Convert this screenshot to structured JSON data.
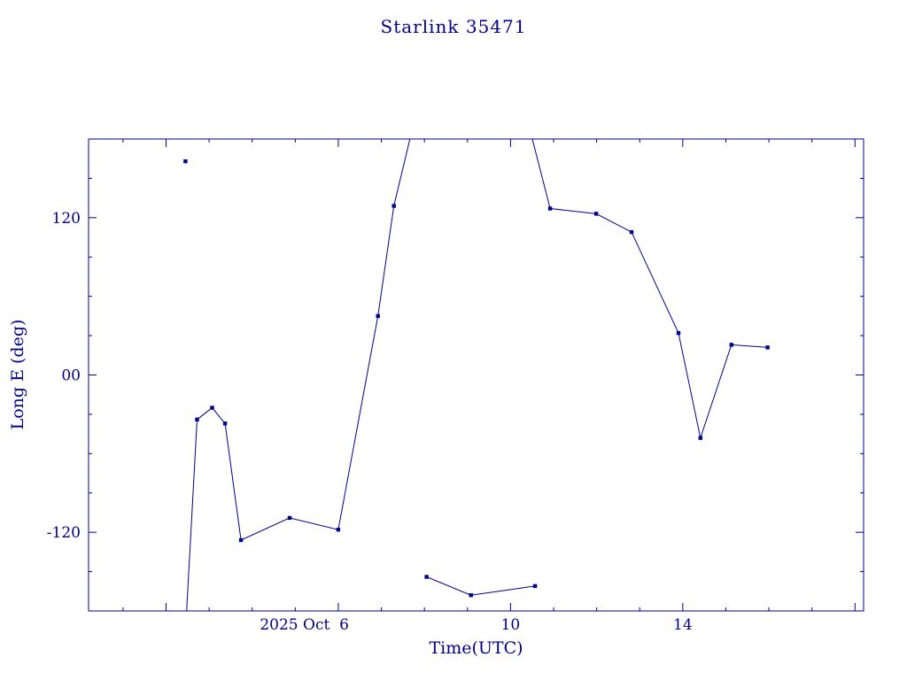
{
  "chart_data": {
    "type": "line",
    "title": "Starlink 35471",
    "xlabel": "Time(UTC)",
    "ylabel": "Long E (deg)",
    "color": "#00008B",
    "background": "#ffffff",
    "grid": false,
    "legend": "none",
    "xlim": [
      0.2,
      18.2
    ],
    "ylim": [
      -180,
      180
    ],
    "x_axis_note": "day of October 2025, UTC",
    "x_ticks": {
      "minor": [
        1,
        3,
        4,
        5,
        7,
        8,
        9,
        11,
        12,
        13,
        15,
        16,
        17
      ],
      "major": [
        2,
        6,
        10,
        14,
        18
      ],
      "labels": [
        {
          "value": 6,
          "label": "2025 Oct  6",
          "align": "end"
        },
        {
          "value": 10,
          "label": "10",
          "align": "middle"
        },
        {
          "value": 14,
          "label": "14",
          "align": "middle"
        }
      ]
    },
    "y_ticks": {
      "minor": [
        -150,
        -90,
        -60,
        -30,
        30,
        60,
        90,
        150
      ],
      "major": [
        -120,
        0,
        120
      ],
      "labels": [
        {
          "value": 120,
          "label": "120"
        },
        {
          "value": 0,
          "label": "00"
        },
        {
          "value": -120,
          "label": "-120"
        }
      ]
    },
    "marker": "filled-square",
    "segments": [
      {
        "name": "isolated-point",
        "points": [
          [
            2.45,
            163
          ]
        ]
      },
      {
        "name": "track-1",
        "points": [
          [
            2.47,
            -185
          ],
          [
            2.72,
            -34
          ],
          [
            3.07,
            -25
          ],
          [
            3.37,
            -37
          ],
          [
            3.74,
            -126
          ],
          [
            4.87,
            -109
          ],
          [
            6.0,
            -118
          ],
          [
            6.92,
            45
          ],
          [
            7.29,
            129
          ],
          [
            7.81,
            200
          ]
        ]
      },
      {
        "name": "track-2",
        "points": [
          [
            10.35,
            200
          ],
          [
            10.92,
            127
          ],
          [
            11.99,
            123
          ],
          [
            12.81,
            109
          ],
          [
            13.9,
            32
          ],
          [
            14.41,
            -48
          ],
          [
            15.13,
            23
          ],
          [
            15.97,
            21
          ]
        ]
      },
      {
        "name": "track-3",
        "points": [
          [
            8.05,
            -154
          ],
          [
            9.08,
            -168
          ],
          [
            10.57,
            -161
          ]
        ]
      }
    ]
  }
}
